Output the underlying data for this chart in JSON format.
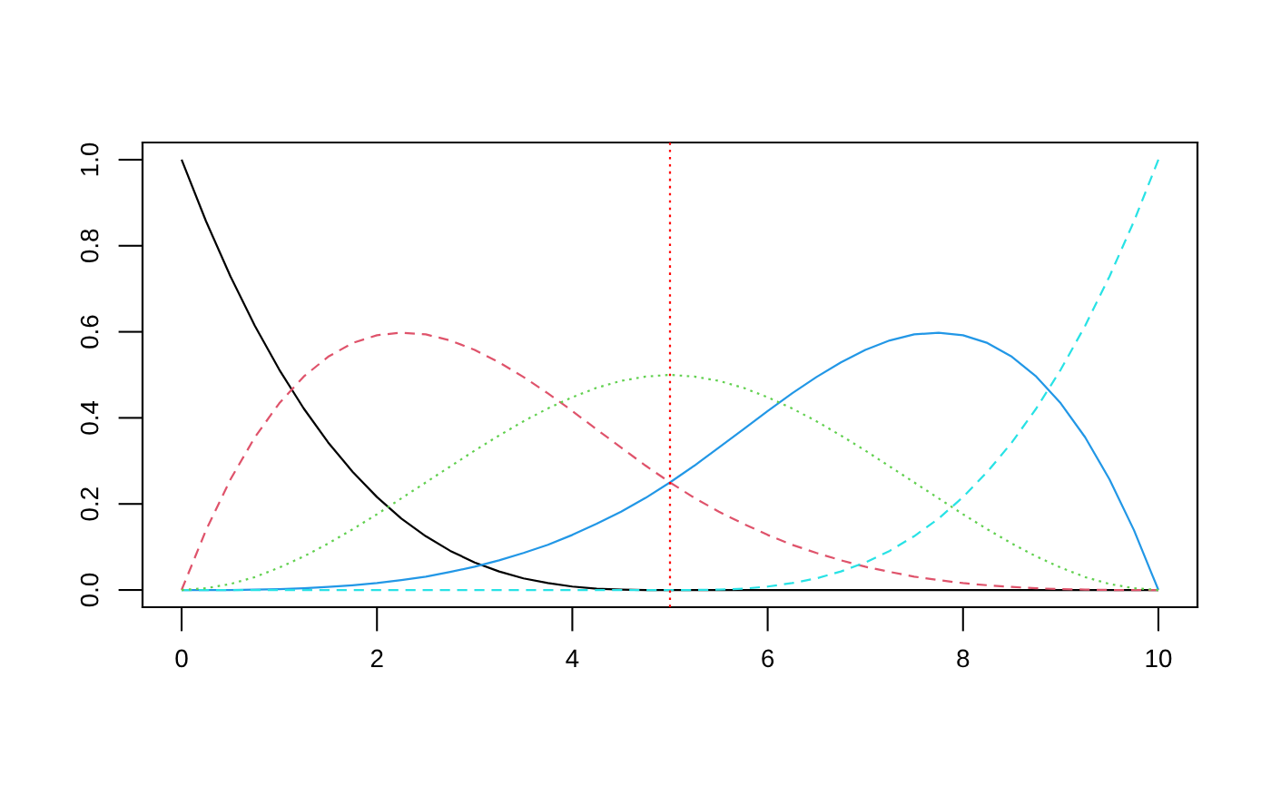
{
  "chart_data": {
    "type": "line",
    "x": [
      0,
      0.25,
      0.5,
      0.75,
      1,
      1.25,
      1.5,
      1.75,
      2,
      2.25,
      2.5,
      2.75,
      3,
      3.25,
      3.5,
      3.75,
      4,
      4.25,
      4.5,
      4.75,
      5,
      5.25,
      5.5,
      5.75,
      6,
      6.25,
      6.5,
      6.75,
      7,
      7.25,
      7.5,
      7.75,
      8,
      8.25,
      8.5,
      8.75,
      9,
      9.25,
      9.5,
      9.75,
      10
    ],
    "series": [
      {
        "color": "#000000",
        "line_style": "solid",
        "values": [
          1,
          0.857,
          0.729,
          0.614,
          0.512,
          0.422,
          0.343,
          0.275,
          0.216,
          0.166,
          0.125,
          0.091,
          0.064,
          0.043,
          0.027,
          0.016,
          0.008,
          0.003,
          0.001,
          0,
          0,
          0,
          0,
          0,
          0,
          0,
          0,
          0,
          0,
          0,
          0,
          0,
          0,
          0,
          0,
          0,
          0,
          0,
          0,
          0,
          0
        ]
      },
      {
        "color": "#df536b",
        "line_style": "dashed",
        "values": [
          0,
          0.139,
          0.257,
          0.355,
          0.434,
          0.496,
          0.542,
          0.574,
          0.592,
          0.598,
          0.594,
          0.58,
          0.558,
          0.529,
          0.495,
          0.457,
          0.416,
          0.373,
          0.331,
          0.289,
          0.25,
          0.214,
          0.182,
          0.154,
          0.128,
          0.105,
          0.086,
          0.069,
          0.054,
          0.042,
          0.031,
          0.023,
          0.016,
          0.011,
          0.007,
          0.004,
          0.002,
          0.001,
          0,
          0,
          0
        ]
      },
      {
        "color": "#61d04f",
        "line_style": "dotted",
        "values": [
          0,
          0.004,
          0.014,
          0.03,
          0.052,
          0.078,
          0.108,
          0.141,
          0.176,
          0.213,
          0.25,
          0.287,
          0.324,
          0.359,
          0.392,
          0.422,
          0.448,
          0.47,
          0.486,
          0.496,
          0.5,
          0.496,
          0.486,
          0.47,
          0.448,
          0.422,
          0.392,
          0.359,
          0.324,
          0.287,
          0.25,
          0.213,
          0.176,
          0.141,
          0.108,
          0.078,
          0.052,
          0.03,
          0.014,
          0.004,
          0
        ]
      },
      {
        "color": "#2297e6",
        "line_style": "solid",
        "values": [
          0,
          0,
          0,
          0.001,
          0.002,
          0.004,
          0.007,
          0.011,
          0.016,
          0.023,
          0.031,
          0.042,
          0.054,
          0.069,
          0.086,
          0.105,
          0.128,
          0.154,
          0.182,
          0.214,
          0.25,
          0.289,
          0.331,
          0.373,
          0.416,
          0.457,
          0.495,
          0.529,
          0.558,
          0.58,
          0.594,
          0.598,
          0.592,
          0.574,
          0.542,
          0.496,
          0.434,
          0.355,
          0.257,
          0.139,
          0
        ]
      },
      {
        "color": "#28e2e5",
        "line_style": "dashed",
        "values": [
          0,
          0,
          0,
          0,
          0,
          0,
          0,
          0,
          0,
          0,
          0,
          0,
          0,
          0,
          0,
          0,
          0,
          0,
          0,
          0,
          0,
          0,
          0.001,
          0.003,
          0.008,
          0.016,
          0.027,
          0.043,
          0.064,
          0.091,
          0.125,
          0.166,
          0.216,
          0.275,
          0.343,
          0.422,
          0.512,
          0.614,
          0.729,
          0.857,
          1
        ]
      }
    ],
    "xlim": [
      -0.4,
      10.4
    ],
    "ylim": [
      -0.04,
      1.04
    ],
    "xticks": [
      0,
      2,
      4,
      6,
      8,
      10
    ],
    "yticks": [
      {
        "value": 0,
        "label": "0.0"
      },
      {
        "value": 0.2,
        "label": "0.2"
      },
      {
        "value": 0.4,
        "label": "0.4"
      },
      {
        "value": 0.6,
        "label": "0.6"
      },
      {
        "value": 0.8,
        "label": "0.8"
      },
      {
        "value": 1,
        "label": "1.0"
      }
    ],
    "ref_lines": [
      {
        "axis": "x",
        "value": 5,
        "color": "#ff0000",
        "line_style": "dotted"
      }
    ]
  }
}
